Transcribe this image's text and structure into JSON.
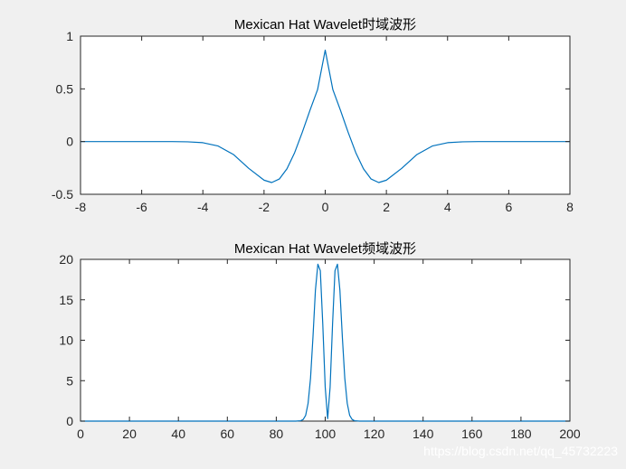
{
  "figure": {
    "watermark": "https://blog.csdn.net/qq_45732223",
    "line_color": "#0072bd"
  },
  "chart_data": [
    {
      "type": "line",
      "title": "Mexican Hat Wavelet时域波形",
      "xlabel": "",
      "ylabel": "",
      "xlim": [
        -8,
        8
      ],
      "ylim": [
        -0.5,
        1
      ],
      "xticks": [
        -8,
        -6,
        -4,
        -2,
        0,
        2,
        4,
        6,
        8
      ],
      "xtick_labels": [
        "-8",
        "-6",
        "-4",
        "-2",
        "0",
        "2",
        "4",
        "6",
        "8"
      ],
      "yticks": [
        -0.5,
        0,
        0.5,
        1
      ],
      "ytick_labels": [
        "-0.5",
        "0",
        "0.5",
        "1"
      ],
      "grid": false,
      "series": [
        {
          "x": [
            -8,
            -6,
            -5,
            -4.5,
            -4,
            -3.5,
            -3,
            -2.5,
            -2,
            -1.75,
            -1.5,
            -1.25,
            -1,
            -0.75,
            -0.5,
            -0.25,
            0,
            0.25,
            0.5,
            0.75,
            1,
            1.25,
            1.5,
            1.75,
            2,
            2.5,
            3,
            3.5,
            4,
            4.5,
            5,
            6,
            8
          ],
          "y": [
            0,
            -0.0001,
            -0.0004,
            -0.0022,
            -0.0107,
            -0.0422,
            -0.1228,
            -0.2541,
            -0.3661,
            -0.3887,
            -0.3551,
            -0.2578,
            -0.1053,
            0.0875,
            0.2953,
            0.4923,
            0.8673,
            0.4923,
            0.2953,
            0.0875,
            -0.1053,
            -0.2578,
            -0.3551,
            -0.3887,
            -0.3661,
            -0.2541,
            -0.1228,
            -0.0422,
            -0.0107,
            -0.0022,
            -0.0004,
            -0.0001,
            0
          ]
        }
      ]
    },
    {
      "type": "line",
      "title": "Mexican Hat Wavelet频域波形",
      "xlabel": "",
      "ylabel": "",
      "xlim": [
        0,
        200
      ],
      "ylim": [
        0,
        20
      ],
      "xticks": [
        0,
        20,
        40,
        60,
        80,
        100,
        120,
        140,
        160,
        180,
        200
      ],
      "xtick_labels": [
        "0",
        "20",
        "40",
        "60",
        "80",
        "100",
        "120",
        "140",
        "160",
        "180",
        "200"
      ],
      "yticks": [
        0,
        5,
        10,
        15,
        20
      ],
      "ytick_labels": [
        "0",
        "5",
        "10",
        "15",
        "20"
      ],
      "grid": false,
      "series": [
        {
          "x": [
            0,
            60,
            80,
            88,
            90,
            91,
            92,
            93,
            94,
            95,
            96,
            97,
            98,
            99,
            100,
            101,
            102,
            103,
            104,
            105,
            106,
            107,
            108,
            109,
            110,
            111,
            112,
            114,
            120,
            140,
            200
          ],
          "y": [
            0,
            0,
            0,
            0,
            0.05,
            0.2,
            0.7,
            2.2,
            5.3,
            10.4,
            16.2,
            19.4,
            18.6,
            12.0,
            4.2,
            0.3,
            4.2,
            12.0,
            18.6,
            19.4,
            16.2,
            10.4,
            5.3,
            2.2,
            0.7,
            0.2,
            0.05,
            0,
            0,
            0,
            0
          ]
        }
      ]
    }
  ]
}
